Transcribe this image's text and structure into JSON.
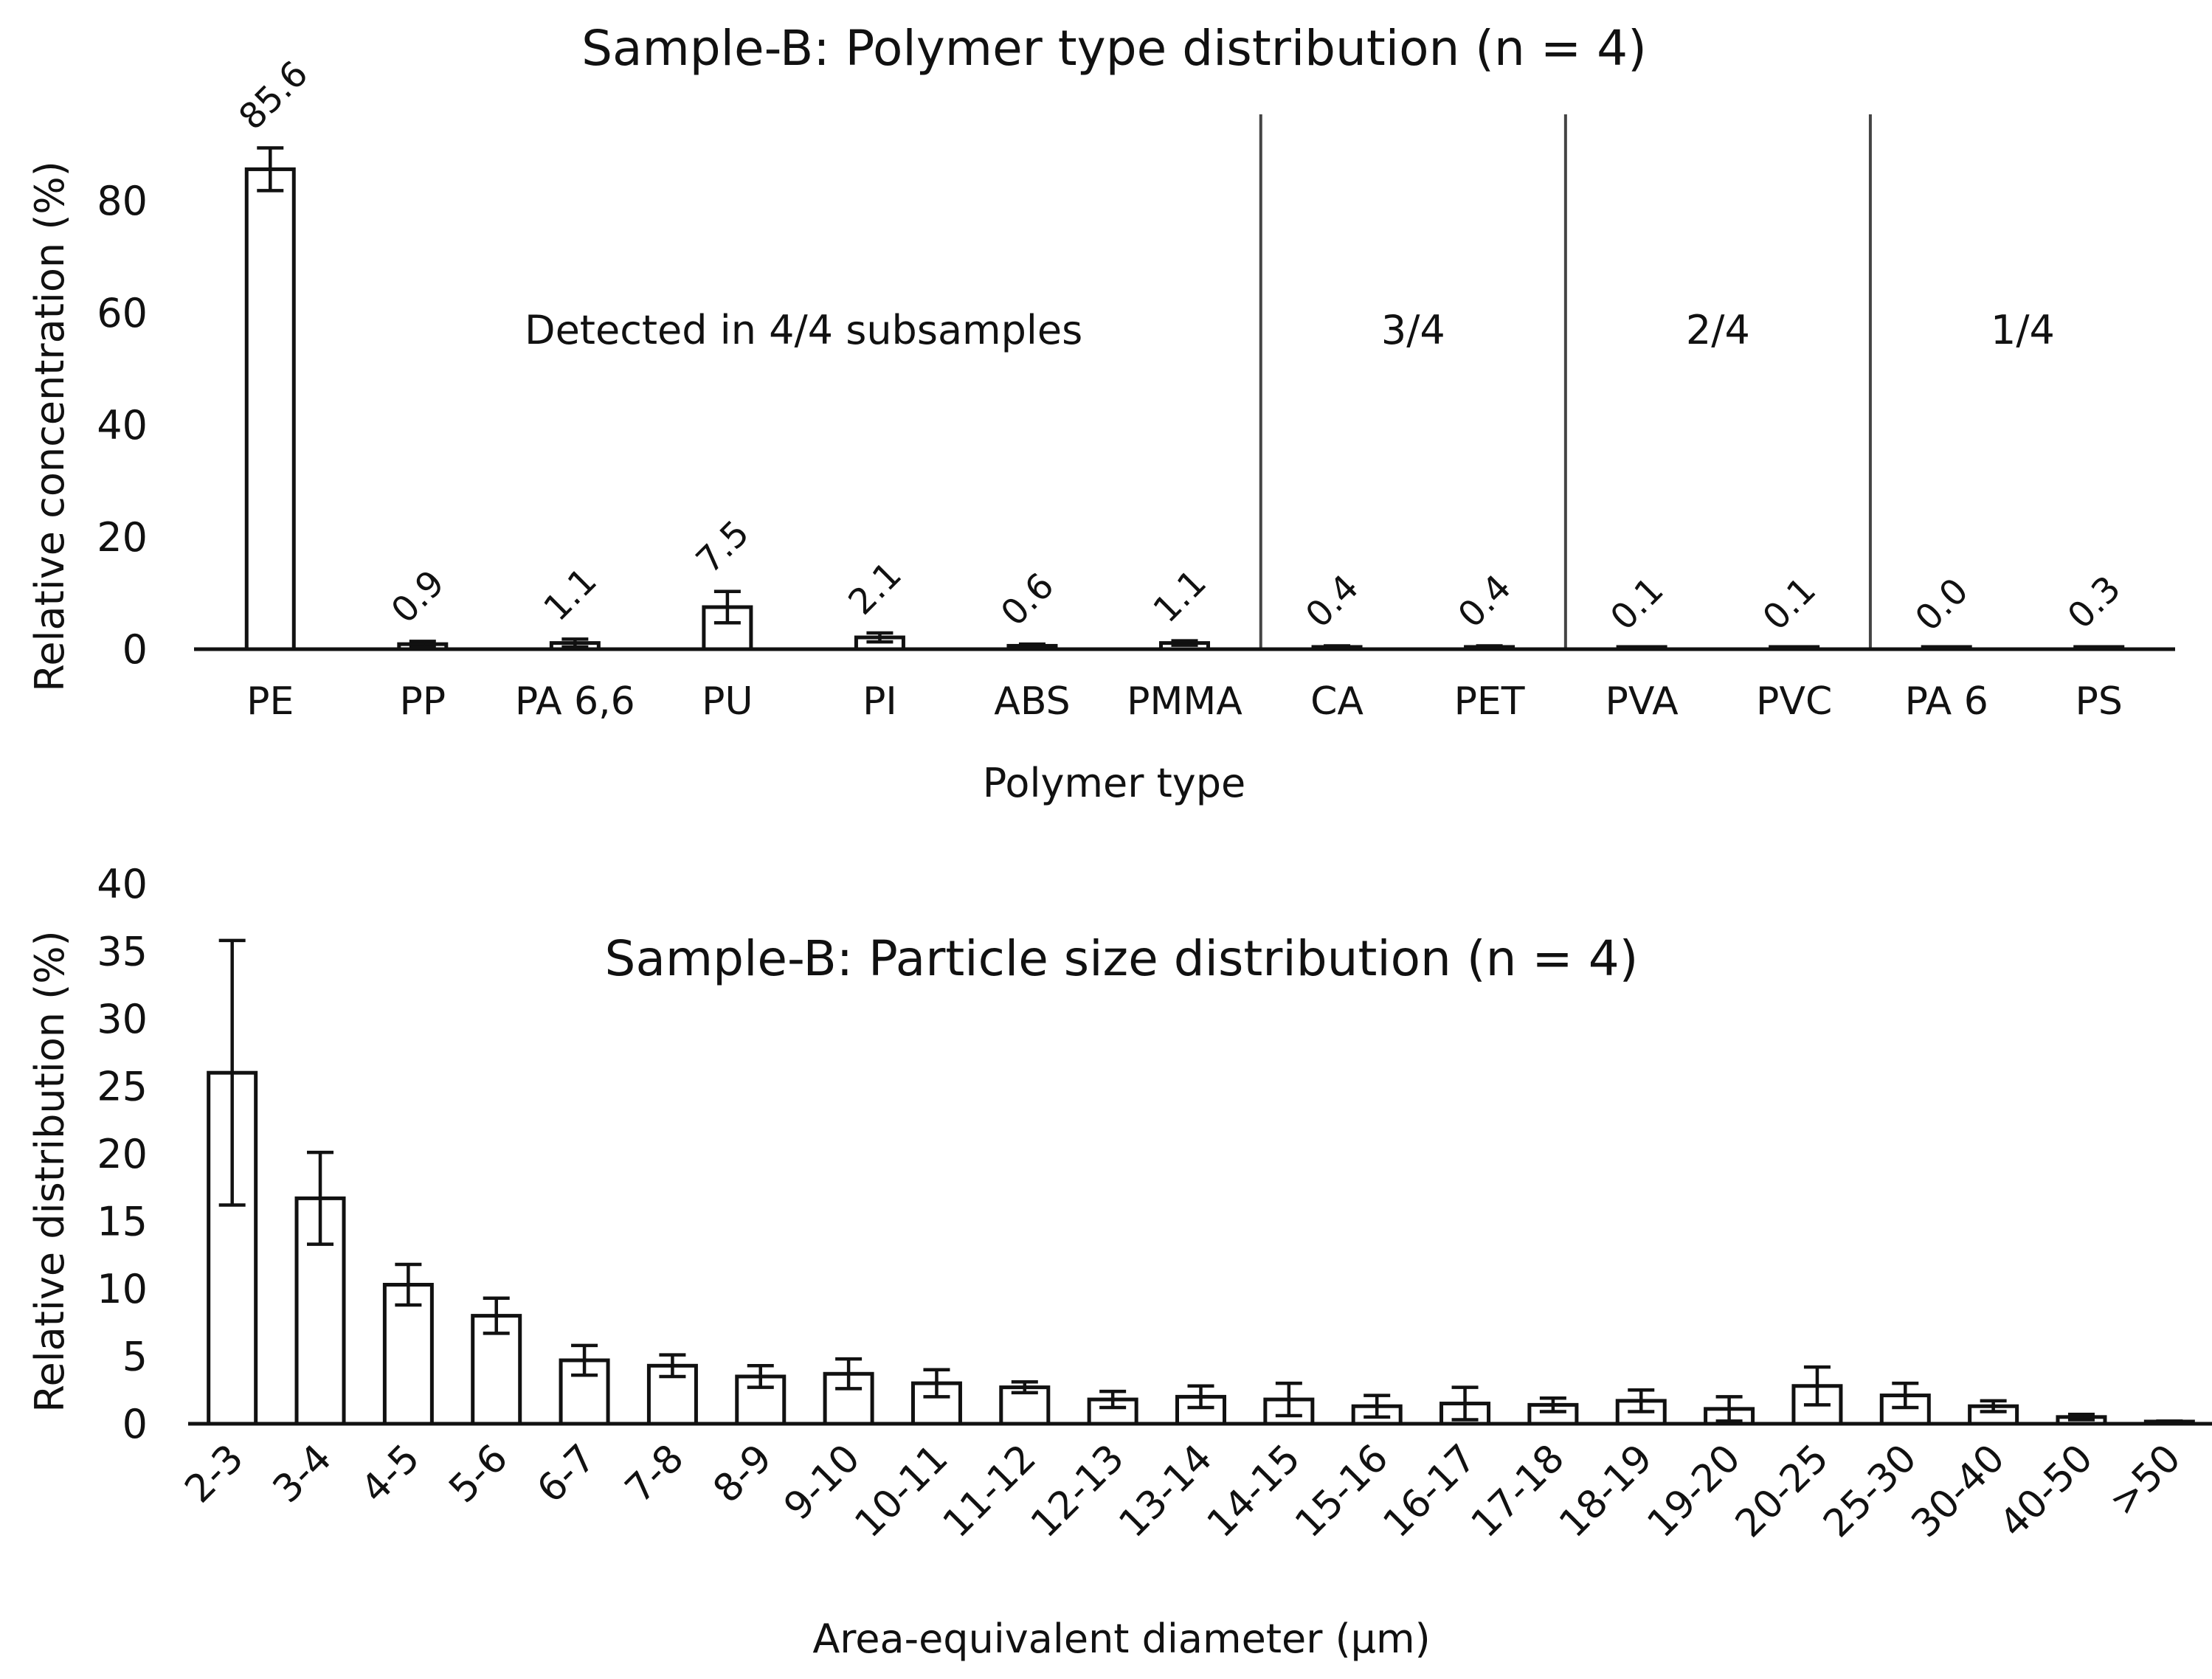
{
  "chart_data": [
    {
      "type": "bar",
      "title": "Sample-B: Polymer type distribution (n = 4)",
      "xlabel": "Polymer type",
      "ylabel": "Relative concentration (%)",
      "ylim": [
        0,
        90
      ],
      "yticks": [
        0,
        20,
        40,
        60,
        80
      ],
      "grid": false,
      "categories": [
        "PE",
        "PP",
        "PA 6,6",
        "PU",
        "PI",
        "ABS",
        "PMMA",
        "CA",
        "PET",
        "PVA",
        "PVC",
        "PA 6",
        "PS"
      ],
      "values": [
        85.6,
        0.9,
        1.1,
        7.5,
        2.1,
        0.6,
        1.1,
        0.4,
        0.4,
        0.1,
        0.1,
        0.0,
        0.3
      ],
      "value_labels": [
        "85.6",
        "0.9",
        "1.1",
        "7.5",
        "2.1",
        "0.6",
        "1.1",
        "0.4",
        "0.4",
        "0.1",
        "0.1",
        "0.0",
        "0.3"
      ],
      "errors": [
        3.8,
        0.5,
        0.7,
        2.8,
        0.8,
        0.3,
        0.4,
        0.2,
        0.2,
        0.05,
        0.05,
        0.0,
        0.1
      ],
      "groups": [
        {
          "label": "Detected in 4/4 subsamples",
          "from": 0,
          "to": 6
        },
        {
          "label": "3/4",
          "from": 7,
          "to": 8
        },
        {
          "label": "2/4",
          "from": 9,
          "to": 10
        },
        {
          "label": "1/4",
          "from": 11,
          "to": 12
        }
      ]
    },
    {
      "type": "bar",
      "title": "Sample-B: Particle size distribution (n = 4)",
      "xlabel": "Area-equivalent diameter (µm)",
      "ylabel": "Relative distribution (%)",
      "ylim": [
        0,
        40
      ],
      "yticks": [
        0,
        5,
        10,
        15,
        20,
        25,
        30,
        35,
        40
      ],
      "grid": false,
      "categories": [
        "2-3",
        "3-4",
        "4-5",
        "5-6",
        "6-7",
        "7-8",
        "8-9",
        "9-10",
        "10-11",
        "11-12",
        "12-13",
        "13-14",
        "14-15",
        "15-16",
        "16-17",
        "17-18",
        "18-19",
        "19-20",
        "20-25",
        "25-30",
        "30-40",
        "40-50",
        ">50"
      ],
      "values": [
        26.0,
        16.7,
        10.3,
        8.0,
        4.7,
        4.3,
        3.5,
        3.7,
        3.0,
        2.7,
        1.8,
        2.0,
        1.8,
        1.3,
        1.5,
        1.4,
        1.7,
        1.1,
        2.8,
        2.1,
        1.3,
        0.5,
        0.15
      ],
      "errors": [
        9.8,
        3.4,
        1.5,
        1.3,
        1.1,
        0.8,
        0.8,
        1.1,
        1.0,
        0.4,
        0.6,
        0.8,
        1.2,
        0.8,
        1.2,
        0.5,
        0.8,
        0.9,
        1.4,
        0.9,
        0.4,
        0.2,
        0.05
      ]
    }
  ]
}
